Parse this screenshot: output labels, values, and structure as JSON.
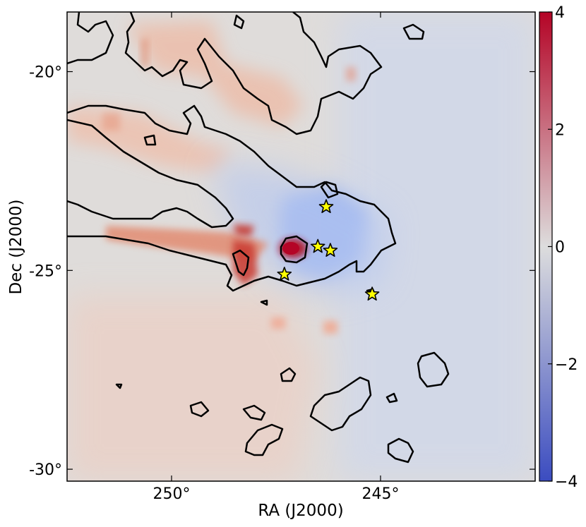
{
  "chart_data": {
    "type": "heatmap",
    "title": "",
    "xlabel": "RA (J2000)",
    "ylabel": "Dec (J2000)",
    "x_tick_labels": [
      "250°",
      "245°"
    ],
    "x_tick_values": [
      250,
      245
    ],
    "y_tick_labels": [
      "-20°",
      "-25°",
      "-30°"
    ],
    "y_tick_values": [
      -20,
      -25,
      -30
    ],
    "xlim": [
      252.5,
      241.3
    ],
    "ylim": [
      -30.3,
      -18.5
    ],
    "colorbar": {
      "cmap": "coolwarm",
      "range": [
        -4,
        4
      ],
      "tick_values": [
        4,
        2,
        0,
        -2,
        -4
      ],
      "tick_labels": [
        "4",
        "2",
        "0",
        "−2",
        "−4"
      ],
      "colors": {
        "low": "#3b4cc0",
        "mid": "#dddddd",
        "high": "#b40426"
      }
    },
    "grid": false,
    "contour_color": "#000000",
    "markers": {
      "symbol": "star",
      "color": "#ffff00",
      "edge_color": "#000000",
      "points": [
        {
          "ra": 246.3,
          "dec": -23.4
        },
        {
          "ra": 246.5,
          "dec": -24.4
        },
        {
          "ra": 246.2,
          "dec": -24.5
        },
        {
          "ra": 247.3,
          "dec": -25.1
        },
        {
          "ra": 245.2,
          "dec": -25.6
        }
      ]
    }
  }
}
